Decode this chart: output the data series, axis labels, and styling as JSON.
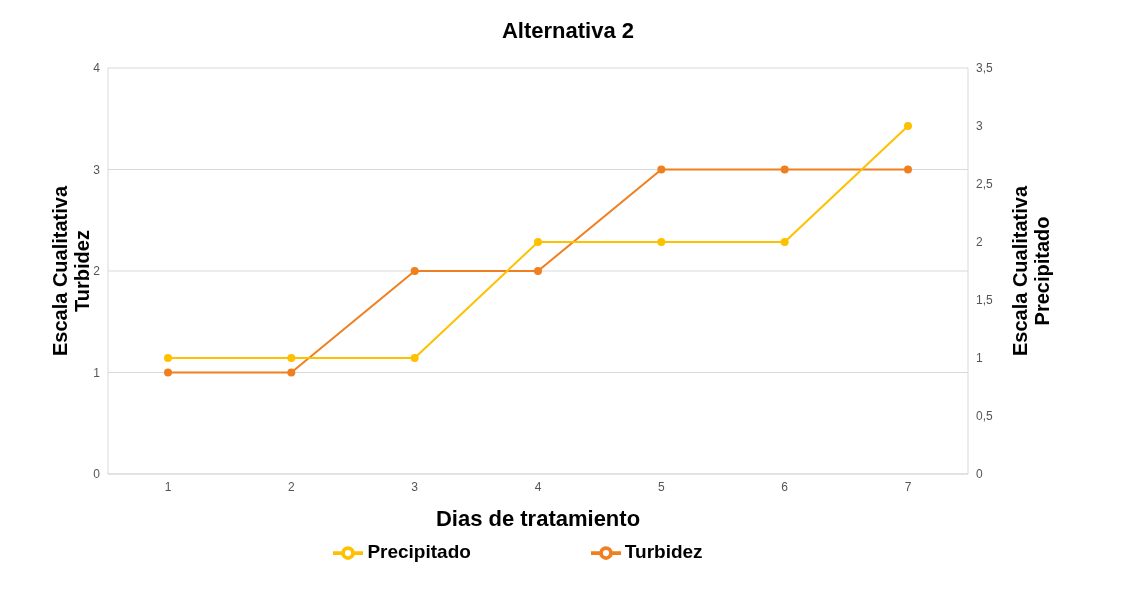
{
  "chart_data": {
    "type": "line",
    "title": "Alternativa 2",
    "xlabel": "Dias de tratamiento",
    "ylabel": "Escala Cualitativa\nTurbidez",
    "y2label": "Escala Cualitativa\nPrecipitado",
    "categories": [
      "1",
      "2",
      "3",
      "4",
      "5",
      "6",
      "7"
    ],
    "series": [
      {
        "name": "Turbidez",
        "color": "#f07f1f",
        "values": [
          1,
          1,
          2,
          2,
          3,
          3,
          3
        ]
      },
      {
        "name": "Precipitado",
        "color": "#ffc000",
        "axis": "y2",
        "values": [
          1,
          1,
          1,
          2,
          2,
          2,
          3
        ]
      }
    ],
    "ylim": [
      0,
      4
    ],
    "yticks": [
      0,
      1,
      2,
      3,
      4
    ],
    "y2lim": [
      0,
      3.5
    ],
    "y2ticks": [
      0,
      {
        "value": 0.5,
        "label": "0,5"
      },
      1,
      {
        "value": 1.5,
        "label": "1,5"
      },
      2,
      {
        "value": 2.5,
        "label": "2,5"
      },
      3,
      {
        "value": 3.5,
        "label": "3,5"
      }
    ],
    "grid": "y",
    "legend": "bottom",
    "marker": "circle",
    "line_style": "solid"
  }
}
